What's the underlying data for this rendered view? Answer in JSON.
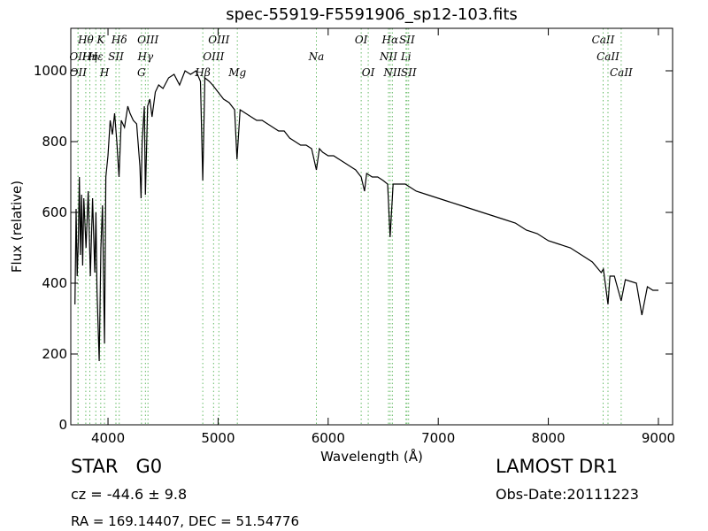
{
  "chart_data": {
    "type": "line",
    "title": "spec-55919-F5591906_sp12-103.fits",
    "xlabel": "Wavelength (Å)",
    "ylabel": "Flux (relative)",
    "xlim": [
      3662,
      9129
    ],
    "ylim": [
      0,
      1120
    ],
    "xticks": [
      4000,
      5000,
      6000,
      7000,
      8000,
      9000
    ],
    "yticks": [
      0,
      200,
      400,
      600,
      800,
      1000
    ],
    "color": "#000000",
    "line_color": "#66bb66",
    "x": [
      3700,
      3710,
      3720,
      3730,
      3740,
      3750,
      3760,
      3770,
      3780,
      3800,
      3820,
      3840,
      3860,
      3880,
      3890,
      3900,
      3920,
      3935,
      3950,
      3968,
      3980,
      4000,
      4020,
      4040,
      4060,
      4080,
      4100,
      4120,
      4150,
      4180,
      4200,
      4230,
      4260,
      4290,
      4300,
      4310,
      4330,
      4340,
      4360,
      4380,
      4400,
      4430,
      4460,
      4500,
      4550,
      4600,
      4650,
      4700,
      4750,
      4800,
      4840,
      4861,
      4880,
      4920,
      4950,
      5000,
      5050,
      5100,
      5150,
      5172,
      5200,
      5250,
      5300,
      5350,
      5400,
      5450,
      5500,
      5550,
      5600,
      5650,
      5700,
      5750,
      5800,
      5850,
      5893,
      5920,
      5950,
      6000,
      6050,
      6100,
      6150,
      6200,
      6250,
      6300,
      6330,
      6350,
      6400,
      6450,
      6500,
      6540,
      6563,
      6590,
      6650,
      6700,
      6750,
      6800,
      6900,
      7000,
      7100,
      7200,
      7300,
      7400,
      7500,
      7600,
      7700,
      7800,
      7900,
      8000,
      8100,
      8200,
      8300,
      8400,
      8480,
      8500,
      8542,
      8560,
      8600,
      8662,
      8700,
      8800,
      8850,
      8900,
      8950,
      9000
    ],
    "values": [
      340,
      610,
      420,
      520,
      700,
      480,
      650,
      450,
      640,
      500,
      660,
      420,
      640,
      430,
      600,
      380,
      180,
      500,
      620,
      230,
      700,
      760,
      860,
      820,
      880,
      800,
      700,
      860,
      840,
      900,
      880,
      860,
      850,
      730,
      640,
      800,
      900,
      650,
      900,
      920,
      870,
      940,
      960,
      950,
      980,
      990,
      960,
      1000,
      990,
      1000,
      970,
      690,
      980,
      970,
      960,
      940,
      920,
      910,
      890,
      750,
      890,
      880,
      870,
      860,
      860,
      850,
      840,
      830,
      830,
      810,
      800,
      790,
      790,
      780,
      720,
      780,
      770,
      760,
      760,
      750,
      740,
      730,
      720,
      700,
      660,
      710,
      700,
      700,
      690,
      680,
      530,
      680,
      680,
      680,
      670,
      660,
      650,
      640,
      630,
      620,
      610,
      600,
      590,
      580,
      570,
      550,
      540,
      520,
      510,
      500,
      480,
      460,
      430,
      440,
      340,
      420,
      420,
      350,
      410,
      400,
      310,
      390,
      380,
      380
    ],
    "spectral_lines": [
      [
        {
          "label": "Hθ",
          "x": 3798
        },
        {
          "label": "K",
          "x": 3934
        },
        {
          "label": "Hδ",
          "x": 4102
        },
        {
          "label": "OIII",
          "x": 4363
        },
        {
          "label": "OIII",
          "x": 5007
        },
        {
          "label": "OI",
          "x": 6300
        },
        {
          "label": "Hα",
          "x": 6563
        },
        {
          "label": "SII",
          "x": 6716
        },
        {
          "label": "CaII",
          "x": 8498
        }
      ],
      [
        {
          "label": "OII",
          "x": 3727
        },
        {
          "label": "Hη",
          "x": 3835
        },
        {
          "label": "Hε",
          "x": 3889
        },
        {
          "label": "SII",
          "x": 4072
        },
        {
          "label": "Hγ",
          "x": 4340
        },
        {
          "label": "OIII",
          "x": 4959
        },
        {
          "label": "Na",
          "x": 5893
        },
        {
          "label": "NII",
          "x": 6548
        },
        {
          "label": "Li",
          "x": 6707
        },
        {
          "label": "CaII",
          "x": 8542
        }
      ],
      [
        {
          "label": "OII",
          "x": 3729
        },
        {
          "label": "H",
          "x": 3968
        },
        {
          "label": "G",
          "x": 4304
        },
        {
          "label": "Hβ",
          "x": 4861
        },
        {
          "label": "Mg",
          "x": 5175
        },
        {
          "label": "OI",
          "x": 6364
        },
        {
          "label": "NII",
          "x": 6583
        },
        {
          "label": "SII",
          "x": 6731
        },
        {
          "label": "CaII",
          "x": 8662
        }
      ]
    ]
  },
  "info": {
    "class": "STAR   G0",
    "cz": "cz = -44.6 ± 9.8",
    "coords": "RA = 169.14407, DEC = 51.54776",
    "survey": "LAMOST DR1",
    "date": "Obs-Date:20111223"
  }
}
